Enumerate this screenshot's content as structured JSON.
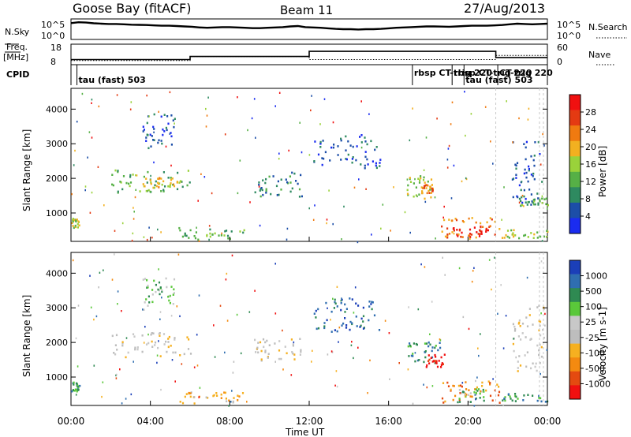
{
  "header": {
    "station": "Goose Bay (fitACF)",
    "beam": "Beam 11",
    "date": "27/Aug/2013"
  },
  "strips": {
    "nsky": {
      "label": "N.Sky",
      "ticks": [
        "10^5",
        "10^0"
      ],
      "right_label": "N.Search",
      "right_ticks": [
        "10^5",
        "10^0"
      ],
      "values": [
        0.85,
        0.9,
        0.88,
        0.84,
        0.82,
        0.8,
        0.8,
        0.78,
        0.76,
        0.75,
        0.74,
        0.72,
        0.7,
        0.7,
        0.68,
        0.66,
        0.64,
        0.6,
        0.58,
        0.6,
        0.62,
        0.62,
        0.6,
        0.58,
        0.56,
        0.56,
        0.58,
        0.6,
        0.62,
        0.66,
        0.68,
        0.62,
        0.6,
        0.58,
        0.55,
        0.52,
        0.5,
        0.5,
        0.48,
        0.5,
        0.5,
        0.52,
        0.55,
        0.58,
        0.6,
        0.62,
        0.64,
        0.66,
        0.66,
        0.65,
        0.64,
        0.66,
        0.68,
        0.7,
        0.7,
        0.7,
        0.72,
        0.74,
        0.78,
        0.82,
        0.8,
        0.78,
        0.8,
        0.82
      ]
    },
    "freq": {
      "label": "Freq.",
      "unit": "[MHz]",
      "ticks": [
        "18",
        "8"
      ],
      "right_label": "Nave",
      "right_ticks": [
        "60",
        "0"
      ],
      "steps": [
        {
          "t0": 0.0,
          "t1": 6.0,
          "v": 10.5
        },
        {
          "t0": 6.0,
          "t1": 12.0,
          "v": 12.0
        },
        {
          "t0": 12.0,
          "t1": 21.4,
          "v": 14.5
        },
        {
          "t0": 21.4,
          "t1": 24.0,
          "v": 11.5
        }
      ],
      "nave_steps": [
        {
          "t0": 0.0,
          "t1": 6.0,
          "v": 10.0
        },
        {
          "t0": 6.0,
          "t1": 12.0,
          "v": 12.0
        },
        {
          "t0": 12.0,
          "t1": 21.4,
          "v": 10.5
        },
        {
          "t0": 21.4,
          "t1": 24.0,
          "v": 12.5
        }
      ]
    },
    "cpid": {
      "label": "CPID",
      "modes": [
        {
          "t": 0.3,
          "label": "tau (fast) 503",
          "row": 2
        },
        {
          "t": 17.2,
          "label": "rbsp CT-trig 220",
          "row": 1
        },
        {
          "t": 19.2,
          "label": "rbsp CT-trig 220",
          "row": 1
        },
        {
          "t": 21.5,
          "label": "CT-trig 220",
          "row": 1
        },
        {
          "t": 19.8,
          "label": "tau (fast) 503",
          "row": 2
        }
      ]
    }
  },
  "chart_data": [
    {
      "type": "heatmap",
      "quantity": "power",
      "ylabel": "Slant Range [km]",
      "ylim": [
        180,
        4600
      ],
      "xlim": [
        0,
        24
      ],
      "yticks": [
        1000,
        2000,
        3000,
        4000
      ],
      "colorbar": {
        "label": "Power [dB]",
        "ticks": [
          "28",
          "24",
          "20",
          "16",
          "12",
          "8",
          "4"
        ],
        "colors": [
          "#1a2cf0",
          "#1c4ea8",
          "#2e8a60",
          "#56b046",
          "#9ad23a",
          "#f2b020",
          "#f07a10",
          "#e43a12",
          "#f01010"
        ]
      },
      "patches": [
        {
          "t0": 2.0,
          "t1": 6.0,
          "r0": 1600,
          "r1": 2300,
          "level": 3
        },
        {
          "t0": 3.5,
          "t1": 5.5,
          "r0": 1750,
          "r1": 2050,
          "level": 5
        },
        {
          "t0": 3.6,
          "t1": 5.2,
          "r0": 2900,
          "r1": 3900,
          "level": 1
        },
        {
          "t0": 5.4,
          "t1": 8.8,
          "r0": 260,
          "r1": 600,
          "level": 3
        },
        {
          "t0": 9.2,
          "t1": 11.6,
          "r0": 1500,
          "r1": 2200,
          "level": 2
        },
        {
          "t0": 12.2,
          "t1": 15.6,
          "r0": 2300,
          "r1": 3300,
          "level": 1
        },
        {
          "t0": 16.9,
          "t1": 18.2,
          "r0": 1400,
          "r1": 2100,
          "level": 4
        },
        {
          "t0": 17.6,
          "t1": 18.2,
          "r0": 1600,
          "r1": 1850,
          "level": 6
        },
        {
          "t0": 18.6,
          "t1": 21.6,
          "r0": 280,
          "r1": 900,
          "level": 6
        },
        {
          "t0": 19.2,
          "t1": 21.0,
          "r0": 300,
          "r1": 650,
          "level": 8
        },
        {
          "t0": 21.6,
          "t1": 24.0,
          "r0": 300,
          "r1": 550,
          "level": 4
        },
        {
          "t0": 22.2,
          "t1": 23.8,
          "r0": 1200,
          "r1": 3100,
          "level": 1
        },
        {
          "t0": 22.6,
          "t1": 24.0,
          "r0": 1250,
          "r1": 1450,
          "level": 3
        },
        {
          "t0": 0.0,
          "t1": 0.4,
          "r0": 600,
          "r1": 900,
          "level": 4
        }
      ]
    },
    {
      "type": "heatmap",
      "quantity": "velocity",
      "ylabel": "Slant Range [km]",
      "ylim": [
        180,
        4600
      ],
      "xlim": [
        0,
        24
      ],
      "yticks": [
        1000,
        2000,
        3000,
        4000
      ],
      "colorbar": {
        "label": "Velocity [m s-1]",
        "ticks": [
          "1000",
          "500",
          "100",
          "25",
          "-25",
          "-100",
          "-500",
          "-1000"
        ],
        "colors": [
          "#f01010",
          "#e44a10",
          "#f48a10",
          "#f6b020",
          "#bdbdbd",
          "#c8c8c8",
          "#5ac83a",
          "#2f8a52",
          "#2f6eb0",
          "#1b3fb8"
        ]
      },
      "patches": [
        {
          "t0": 2.0,
          "t1": 6.0,
          "r0": 1600,
          "r1": 2300,
          "level": 4
        },
        {
          "t0": 3.6,
          "t1": 5.2,
          "r0": 2900,
          "r1": 3900,
          "level": 6
        },
        {
          "t0": 5.4,
          "t1": 8.8,
          "r0": 260,
          "r1": 600,
          "level": 3
        },
        {
          "t0": 9.2,
          "t1": 11.6,
          "r0": 1500,
          "r1": 2200,
          "level": 4
        },
        {
          "t0": 12.2,
          "t1": 15.6,
          "r0": 2300,
          "r1": 3300,
          "level": 8
        },
        {
          "t0": 16.9,
          "t1": 18.6,
          "r0": 1400,
          "r1": 2100,
          "level": 7
        },
        {
          "t0": 17.8,
          "t1": 18.8,
          "r0": 1300,
          "r1": 1700,
          "level": 0
        },
        {
          "t0": 18.6,
          "t1": 21.6,
          "r0": 280,
          "r1": 900,
          "level": 2
        },
        {
          "t0": 19.4,
          "t1": 21.2,
          "r0": 300,
          "r1": 700,
          "level": 6
        },
        {
          "t0": 21.6,
          "t1": 24.0,
          "r0": 300,
          "r1": 550,
          "level": 7
        },
        {
          "t0": 22.2,
          "t1": 23.8,
          "r0": 1200,
          "r1": 3100,
          "level": 4
        },
        {
          "t0": 0.0,
          "t1": 0.4,
          "r0": 600,
          "r1": 900,
          "level": 7
        }
      ]
    }
  ],
  "xaxis": {
    "label": "Time UT",
    "ticks": [
      "00:00",
      "04:00",
      "08:00",
      "12:00",
      "16:00",
      "20:00",
      "00:00"
    ],
    "tick_hours": [
      0,
      4,
      8,
      12,
      16,
      20,
      24
    ]
  }
}
